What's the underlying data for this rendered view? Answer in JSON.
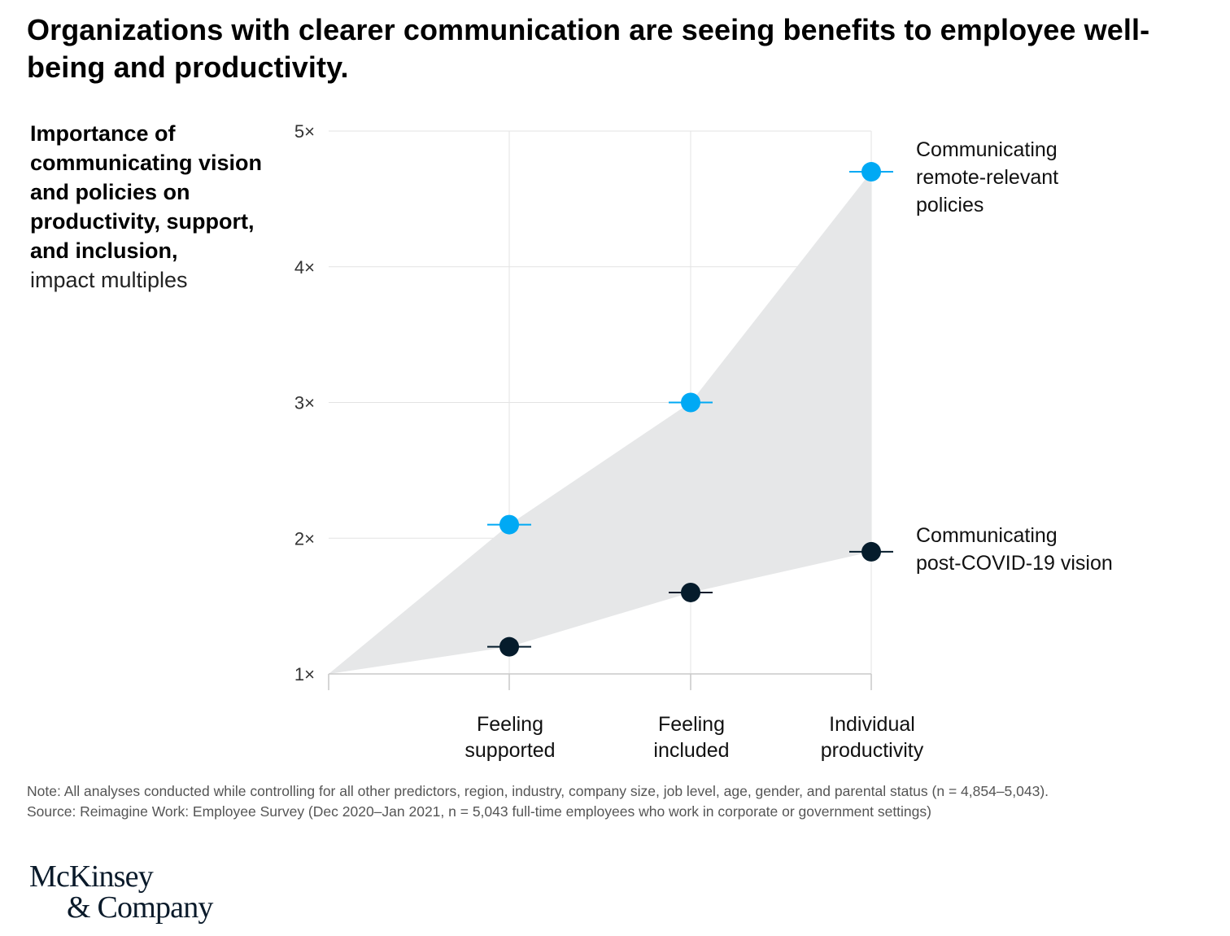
{
  "title": "Organizations with clearer communication are seeing benefits to employee well-being and productivity.",
  "y_description": {
    "bold": "Importance of communicating vision and policies on productivity, support, and inclusion,",
    "light": "impact multiples"
  },
  "chart_data": {
    "type": "scatter",
    "categories": [
      "Feeling supported",
      "Feeling included",
      "Individual productivity"
    ],
    "category_lines": [
      [
        "Feeling",
        "supported"
      ],
      [
        "Feeling",
        "included"
      ],
      [
        "Individual",
        "productivity"
      ]
    ],
    "y_ticks": [
      1,
      2,
      3,
      4,
      5
    ],
    "y_tick_labels": [
      "1×",
      "2×",
      "3×",
      "4×",
      "5×"
    ],
    "ylim": [
      1,
      5
    ],
    "baseline": 1,
    "series": [
      {
        "name": "Communicating remote-relevant policies",
        "label_lines": [
          "Communicating",
          "remote-relevant",
          "policies"
        ],
        "values": [
          2.1,
          3.0,
          4.7
        ],
        "color": "#00a9f4"
      },
      {
        "name": "Communicating post-COVID-19 vision",
        "label_lines": [
          "Communicating",
          "post-COVID-19 vision"
        ],
        "values": [
          1.2,
          1.6,
          1.9
        ],
        "color": "#051c2c"
      }
    ],
    "band_color": "#e6e7e8",
    "grid": true
  },
  "footnote": {
    "note": "Note: All analyses conducted while controlling for all other predictors, region, industry, company size, job level, age, gender, and parental status (n = 4,854–5,043).",
    "source": "Source: Reimagine Work: Employee Survey (Dec 2020–Jan 2021, n = 5,043 full-time employees who work in corporate or government settings)"
  },
  "logo": {
    "line1": "McKinsey",
    "line2": "& Company"
  }
}
